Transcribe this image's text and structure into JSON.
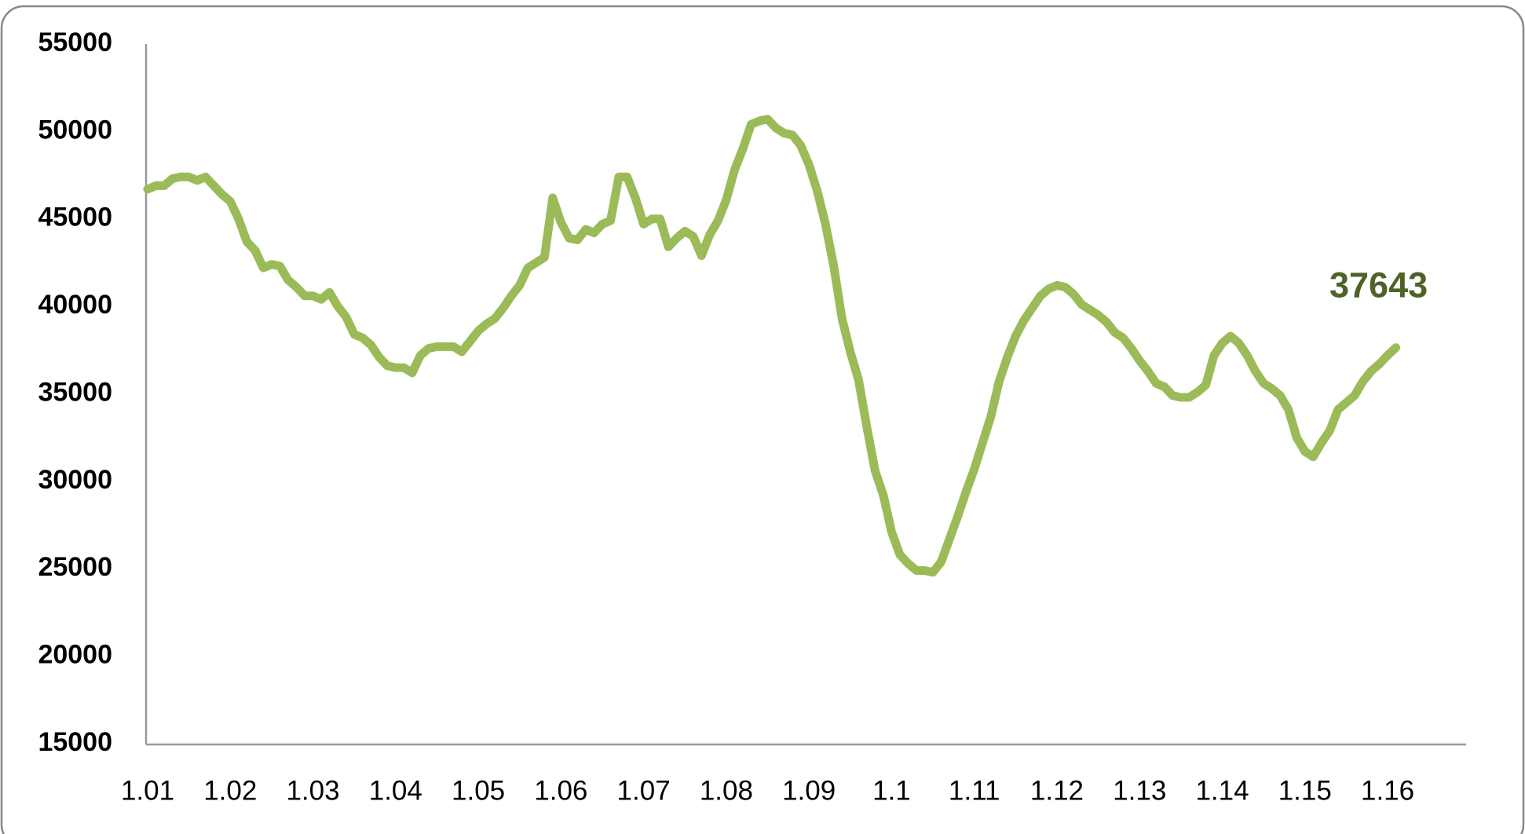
{
  "chart_data": {
    "type": "line",
    "categories": [
      "1.01",
      null,
      null,
      null,
      null,
      null,
      null,
      null,
      null,
      null,
      "1.02",
      null,
      null,
      null,
      null,
      null,
      null,
      null,
      null,
      null,
      "1.03",
      null,
      null,
      null,
      null,
      null,
      null,
      null,
      null,
      null,
      "1.04",
      null,
      null,
      null,
      null,
      null,
      null,
      null,
      null,
      null,
      "1.05",
      null,
      null,
      null,
      null,
      null,
      null,
      null,
      null,
      null,
      "1.06",
      null,
      null,
      null,
      null,
      null,
      null,
      null,
      null,
      null,
      "1.07",
      null,
      null,
      null,
      null,
      null,
      null,
      null,
      null,
      null,
      "1.08",
      null,
      null,
      null,
      null,
      null,
      null,
      null,
      null,
      null,
      "1.09",
      null,
      null,
      null,
      null,
      null,
      null,
      null,
      null,
      null,
      "1.1",
      null,
      null,
      null,
      null,
      null,
      null,
      null,
      null,
      null,
      "1.11",
      null,
      null,
      null,
      null,
      null,
      null,
      null,
      null,
      null,
      "1.12",
      null,
      null,
      null,
      null,
      null,
      null,
      null,
      null,
      null,
      "1.13",
      null,
      null,
      null,
      null,
      null,
      null,
      null,
      null,
      null,
      "1.14",
      null,
      null,
      null,
      null,
      null,
      null,
      null,
      null,
      null,
      "1.15",
      null,
      null,
      null,
      null,
      null,
      null,
      null,
      null,
      null,
      "1.16",
      null
    ],
    "values": [
      46700,
      46900,
      46900,
      47300,
      47400,
      47400,
      47200,
      47400,
      46900,
      46400,
      46000,
      45000,
      43700,
      43200,
      42200,
      42400,
      42300,
      41500,
      41100,
      40600,
      40600,
      40400,
      40800,
      40000,
      39400,
      38400,
      38200,
      37800,
      37100,
      36600,
      36500,
      36500,
      36200,
      37200,
      37600,
      37700,
      37700,
      37700,
      37400,
      38000,
      38600,
      39000,
      39300,
      39900,
      40600,
      41200,
      42200,
      42500,
      42800,
      46200,
      44800,
      43900,
      43800,
      44400,
      44200,
      44700,
      44900,
      47400,
      47400,
      46200,
      44700,
      45000,
      45000,
      43400,
      43900,
      44300,
      44000,
      42900,
      44100,
      44900,
      46100,
      47800,
      49000,
      50400,
      50600,
      50700,
      50200,
      49900,
      49800,
      49200,
      48100,
      46600,
      44700,
      42300,
      39300,
      37400,
      35800,
      33100,
      30600,
      29200,
      27100,
      25800,
      25300,
      24900,
      24900,
      24800,
      25400,
      26700,
      28000,
      29400,
      30700,
      32200,
      33700,
      35700,
      37100,
      38300,
      39200,
      39900,
      40600,
      41000,
      41200,
      41100,
      40700,
      40100,
      39800,
      39500,
      39100,
      38500,
      38200,
      37600,
      36900,
      36300,
      35600,
      35400,
      34900,
      34800,
      34800,
      35100,
      35500,
      37200,
      37900,
      38300,
      37900,
      37200,
      36300,
      35600,
      35300,
      34900,
      34100,
      32500,
      31700,
      31400,
      32200,
      32900,
      34100,
      34500,
      34900,
      35700,
      36300,
      36700,
      37200,
      37643
    ],
    "color": "#9bbb59",
    "ylim": [
      15000,
      55000
    ],
    "yticks": [
      15000,
      20000,
      25000,
      30000,
      35000,
      40000,
      45000,
      50000,
      55000
    ],
    "grid": false,
    "data_label_index": 151
  }
}
